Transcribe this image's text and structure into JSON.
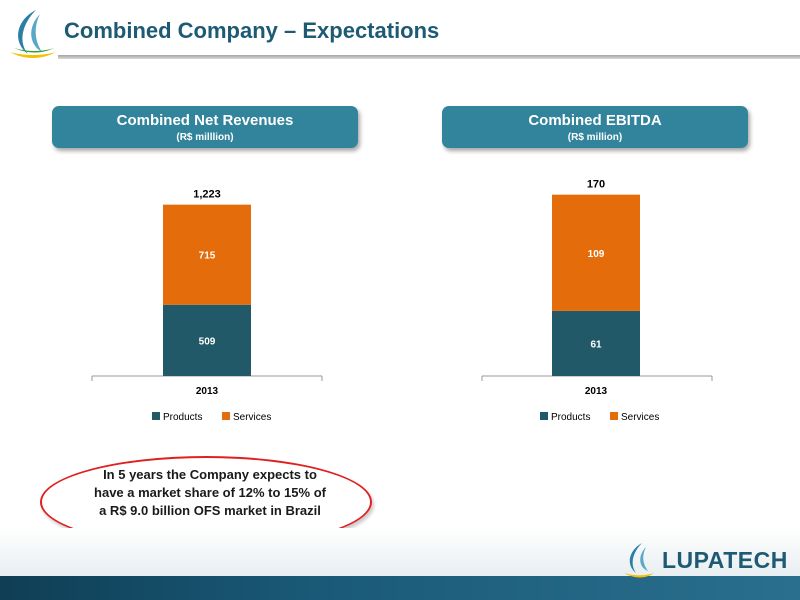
{
  "slide": {
    "title": "Combined Company – Expectations",
    "callout": "In 5 years the Company expects to have a market share of 12% to 15% of a R$ 9.0 billion OFS market in Brazil",
    "brand": "LUPATECH"
  },
  "headers": [
    {
      "title": "Combined Net Revenues",
      "subtitle": "(R$ milllion)"
    },
    {
      "title": "Combined EBITDA",
      "subtitle": "(R$ million)"
    }
  ],
  "colors": {
    "products": "#215968",
    "services": "#e46c0a",
    "header": "#31849b",
    "accent": "#1e5a74"
  },
  "chart_data": [
    {
      "type": "bar",
      "stacked": true,
      "categories": [
        "2013"
      ],
      "series": [
        {
          "name": "Products",
          "values": [
            509
          ]
        },
        {
          "name": "Services",
          "values": [
            715
          ]
        }
      ],
      "total_labels": [
        "1,223"
      ],
      "ylim": [
        0,
        1300
      ],
      "legend": "bottom",
      "grid": false
    },
    {
      "type": "bar",
      "stacked": true,
      "categories": [
        "2013"
      ],
      "series": [
        {
          "name": "Products",
          "values": [
            61
          ]
        },
        {
          "name": "Services",
          "values": [
            109
          ]
        }
      ],
      "total_labels": [
        "170"
      ],
      "ylim": [
        0,
        180
      ],
      "legend": "bottom",
      "grid": false
    }
  ]
}
